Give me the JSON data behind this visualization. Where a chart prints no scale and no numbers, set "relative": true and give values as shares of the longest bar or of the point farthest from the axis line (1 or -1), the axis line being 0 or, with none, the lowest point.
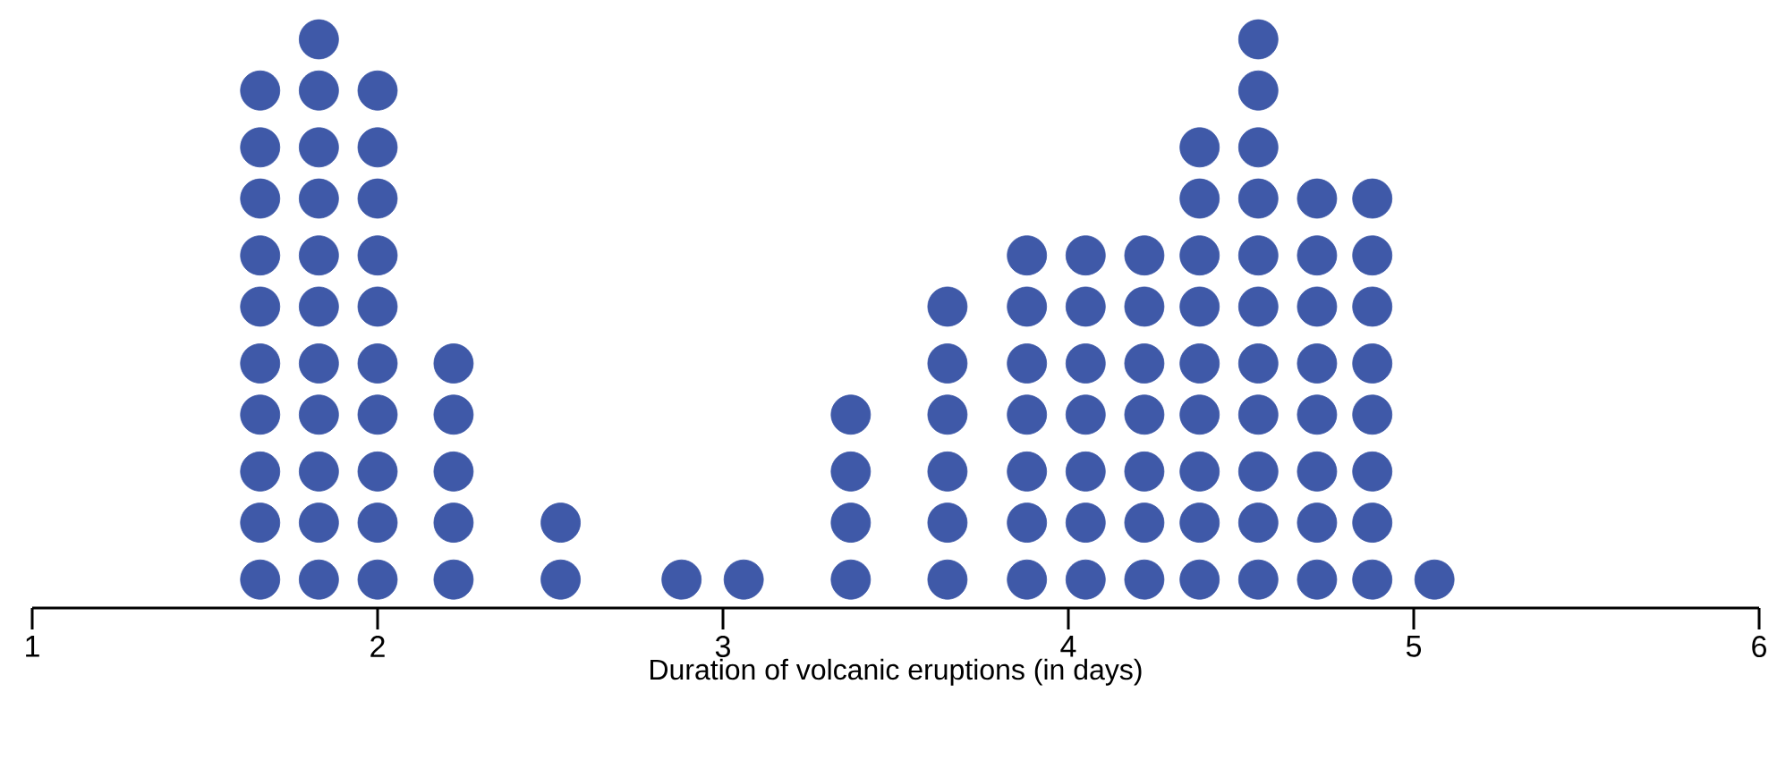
{
  "chart_data": {
    "type": "scatter",
    "xlabel": "Duration of volcanic eruptions (in days)",
    "marker": "circle",
    "tick_labels": "x",
    "xlim": [
      1,
      6
    ],
    "xticks": [
      1,
      2,
      3,
      4,
      5,
      6
    ],
    "series": [
      {
        "color": "#3f59a8",
        "x": [
          1.66,
          1.66,
          1.66,
          1.66,
          1.66,
          1.66,
          1.66,
          1.66,
          1.66,
          1.66,
          1.83,
          1.83,
          1.83,
          1.83,
          1.83,
          1.83,
          1.83,
          1.83,
          1.83,
          1.83,
          1.83,
          2.0,
          2.0,
          2.0,
          2.0,
          2.0,
          2.0,
          2.0,
          2.0,
          2.0,
          2.0,
          2.22,
          2.22,
          2.22,
          2.22,
          2.22,
          2.53,
          2.53,
          2.88,
          3.06,
          3.37,
          3.37,
          3.37,
          3.37,
          3.65,
          3.65,
          3.65,
          3.65,
          3.65,
          3.65,
          3.88,
          3.88,
          3.88,
          3.88,
          3.88,
          3.88,
          3.88,
          4.05,
          4.05,
          4.05,
          4.05,
          4.05,
          4.05,
          4.05,
          4.22,
          4.22,
          4.22,
          4.22,
          4.22,
          4.22,
          4.22,
          4.38,
          4.38,
          4.38,
          4.38,
          4.38,
          4.38,
          4.38,
          4.38,
          4.38,
          4.55,
          4.55,
          4.55,
          4.55,
          4.55,
          4.55,
          4.55,
          4.55,
          4.55,
          4.55,
          4.55,
          4.72,
          4.72,
          4.72,
          4.72,
          4.72,
          4.72,
          4.72,
          4.72,
          4.88,
          4.88,
          4.88,
          4.88,
          4.88,
          4.88,
          4.88,
          4.88,
          5.06
        ],
        "values": [
          0.05,
          0.15,
          0.24,
          0.34,
          0.43,
          0.53,
          0.62,
          0.72,
          0.81,
          0.91,
          0.05,
          0.15,
          0.24,
          0.34,
          0.43,
          0.53,
          0.62,
          0.72,
          0.81,
          0.91,
          1,
          0.05,
          0.15,
          0.24,
          0.34,
          0.43,
          0.53,
          0.62,
          0.72,
          0.81,
          0.91,
          0.05,
          0.15,
          0.24,
          0.34,
          0.43,
          0.05,
          0.15,
          0.05,
          0.05,
          0.05,
          0.15,
          0.24,
          0.34,
          0.05,
          0.15,
          0.24,
          0.34,
          0.43,
          0.53,
          0.05,
          0.15,
          0.24,
          0.34,
          0.43,
          0.53,
          0.62,
          0.05,
          0.15,
          0.24,
          0.34,
          0.43,
          0.53,
          0.62,
          0.05,
          0.15,
          0.24,
          0.34,
          0.43,
          0.53,
          0.62,
          0.05,
          0.15,
          0.24,
          0.34,
          0.43,
          0.53,
          0.62,
          0.72,
          0.81,
          0.05,
          0.15,
          0.24,
          0.34,
          0.43,
          0.53,
          0.62,
          0.72,
          0.81,
          0.91,
          1,
          0.05,
          0.15,
          0.24,
          0.34,
          0.43,
          0.53,
          0.62,
          0.72,
          0.05,
          0.15,
          0.24,
          0.34,
          0.43,
          0.53,
          0.62,
          0.72,
          0.05
        ]
      }
    ],
    "relative": true
  }
}
